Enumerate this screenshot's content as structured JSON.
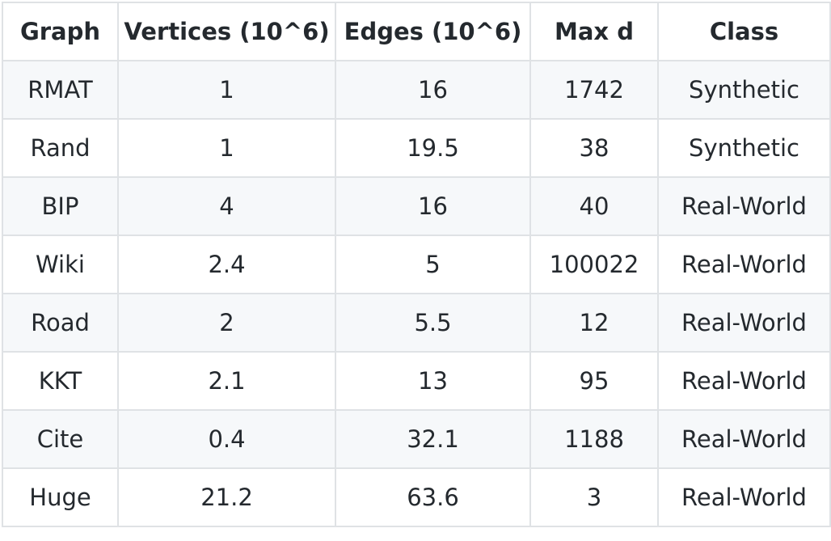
{
  "table": {
    "headers": [
      "Graph",
      "Vertices (10^6)",
      "Edges (10^6)",
      "Max d",
      "Class"
    ],
    "rows": [
      [
        "RMAT",
        "1",
        "16",
        "1742",
        "Synthetic"
      ],
      [
        "Rand",
        "1",
        "19.5",
        "38",
        "Synthetic"
      ],
      [
        "BIP",
        "4",
        "16",
        "40",
        "Real-World"
      ],
      [
        "Wiki",
        "2.4",
        "5",
        "100022",
        "Real-World"
      ],
      [
        "Road",
        "2",
        "5.5",
        "12",
        "Real-World"
      ],
      [
        "KKT",
        "2.1",
        "13",
        "95",
        "Real-World"
      ],
      [
        "Cite",
        "0.4",
        "32.1",
        "1188",
        "Real-World"
      ],
      [
        "Huge",
        "21.2",
        "63.6",
        "3",
        "Real-World"
      ]
    ]
  },
  "colors": {
    "border": "#dfe2e5",
    "stripe": "#f6f8fa",
    "text": "#24292e"
  }
}
